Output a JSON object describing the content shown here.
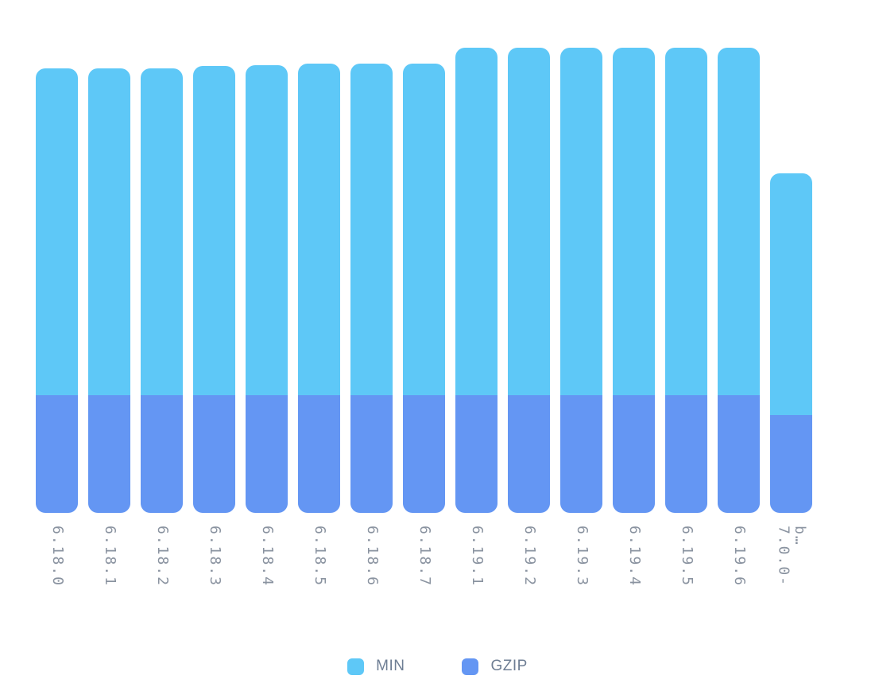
{
  "chart_data": {
    "type": "bar",
    "stacked": true,
    "title": "",
    "xlabel": "",
    "ylabel": "",
    "ylim": [
      0,
      100
    ],
    "grid": false,
    "legend_position": "bottom",
    "categories": [
      "6.18.0",
      "6.18.1",
      "6.18.2",
      "6.18.3",
      "6.18.4",
      "6.18.5",
      "6.18.6",
      "6.18.7",
      "6.19.1",
      "6.19.2",
      "6.19.3",
      "6.19.4",
      "6.19.5",
      "6.19.6",
      "7.0.0-\nb…"
    ],
    "series": [
      {
        "name": "MIN",
        "color": "#5EC8F7",
        "values": [
          70.2,
          70.2,
          70.3,
          70.7,
          70.9,
          71.3,
          71.3,
          71.3,
          74.7,
          74.7,
          74.7,
          74.7,
          74.7,
          74.7,
          52.0
        ]
      },
      {
        "name": "GZIP",
        "color": "#6496F3",
        "values": [
          25.3,
          25.3,
          25.3,
          25.3,
          25.3,
          25.3,
          25.3,
          25.3,
          25.3,
          25.3,
          25.3,
          25.3,
          25.3,
          25.3,
          21.0
        ]
      }
    ]
  },
  "legend": {
    "items": [
      {
        "label": "MIN",
        "color": "#5EC8F7"
      },
      {
        "label": "GZIP",
        "color": "#6496F3"
      }
    ]
  }
}
